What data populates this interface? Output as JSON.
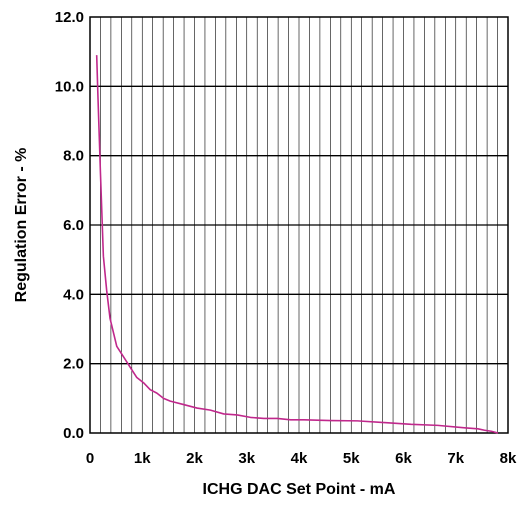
{
  "chart_data": {
    "type": "line",
    "title": "",
    "xlabel": "ICHG DAC Set Point - mA",
    "ylabel": "Regulation Error - %",
    "xlim": [
      0,
      8000
    ],
    "ylim": [
      0,
      12
    ],
    "x_ticks": [
      0,
      1000,
      2000,
      3000,
      4000,
      5000,
      6000,
      7000,
      8000
    ],
    "x_tick_labels": [
      "0",
      "1k",
      "2k",
      "3k",
      "4k",
      "5k",
      "6k",
      "7k",
      "8k"
    ],
    "y_ticks": [
      0,
      2,
      4,
      6,
      8,
      10,
      12
    ],
    "y_tick_labels": [
      "0.0",
      "2.0",
      "4.0",
      "6.0",
      "8.0",
      "10.0",
      "12.0"
    ],
    "x_minor_step": 200,
    "grid": true,
    "line_color": "#c0288c",
    "series": [
      {
        "name": "",
        "x": [
          128,
          150,
          200,
          256,
          320,
          384,
          448,
          512,
          640,
          768,
          896,
          1024,
          1152,
          1280,
          1408,
          1536,
          1792,
          2048,
          2304,
          2560,
          2816,
          3072,
          3328,
          3584,
          3840,
          4096,
          4608,
          5120,
          5632,
          6144,
          6656,
          7168,
          7424,
          7552,
          7680,
          7808
        ],
        "y": [
          10.9,
          9.8,
          7.5,
          5.1,
          4.1,
          3.3,
          2.9,
          2.5,
          2.2,
          1.9,
          1.6,
          1.45,
          1.25,
          1.15,
          1.0,
          0.92,
          0.82,
          0.72,
          0.66,
          0.55,
          0.52,
          0.45,
          0.42,
          0.42,
          0.38,
          0.38,
          0.36,
          0.35,
          0.3,
          0.25,
          0.22,
          0.15,
          0.12,
          0.08,
          0.05,
          0.0
        ]
      }
    ]
  }
}
